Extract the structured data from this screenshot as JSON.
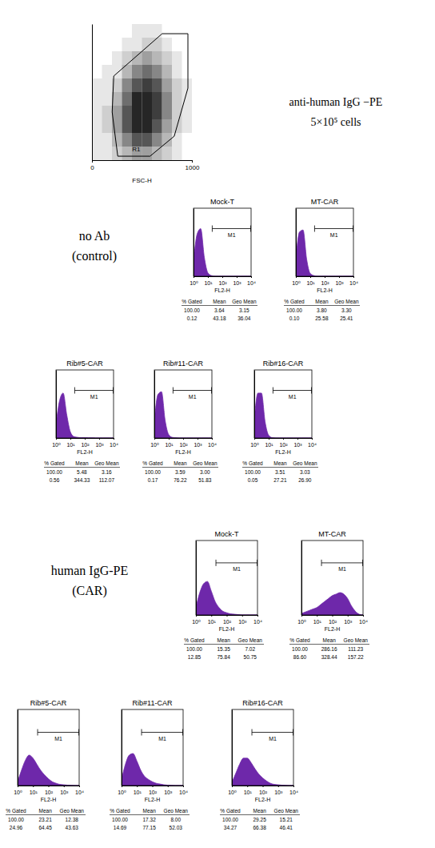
{
  "chart_data": [
    {
      "type": "density",
      "xlabel": "FSC-H",
      "xlim": [
        0,
        1000
      ],
      "ylim": [
        0,
        1000
      ],
      "xticks": [
        0,
        1000
      ],
      "tick_labels": "x",
      "color": "#000000",
      "density_xbins": [
        0,
        100,
        200,
        300,
        400,
        500,
        600,
        700,
        800,
        900,
        1000
      ],
      "density_ybins": [
        0,
        100,
        200,
        300,
        400,
        500,
        600,
        700,
        800,
        900,
        1000
      ],
      "density": [
        [
          1,
          1,
          2,
          3,
          4,
          4,
          3,
          2,
          1,
          0
        ],
        [
          1,
          1,
          3,
          5,
          7,
          7,
          5,
          3,
          1,
          0
        ],
        [
          1,
          2,
          4,
          7,
          9,
          9,
          7,
          4,
          2,
          1
        ],
        [
          1,
          2,
          4,
          7,
          9,
          9,
          8,
          5,
          2,
          1
        ],
        [
          1,
          1,
          3,
          6,
          9,
          9,
          8,
          5,
          2,
          1
        ],
        [
          1,
          1,
          2,
          5,
          7,
          8,
          7,
          4,
          2,
          1
        ],
        [
          0,
          1,
          1,
          3,
          5,
          6,
          5,
          3,
          1,
          0
        ],
        [
          0,
          0,
          1,
          2,
          3,
          4,
          3,
          2,
          1,
          0
        ],
        [
          0,
          0,
          0,
          1,
          1,
          2,
          2,
          1,
          0,
          0
        ],
        [
          0,
          0,
          0,
          0,
          1,
          1,
          1,
          0,
          0,
          0
        ]
      ],
      "gate": {
        "label": "R1",
        "polygon": [
          [
            218,
            618
          ],
          [
            702,
            929
          ],
          [
            960,
            929
          ],
          [
            960,
            529
          ],
          [
            823,
            176
          ],
          [
            581,
            29
          ],
          [
            258,
            29
          ],
          [
            202,
            353
          ]
        ]
      },
      "annotations": [
        "anti-human IgG −PE",
        "5×10⁵ cells"
      ]
    },
    {
      "type": "area",
      "title": "Mock-T",
      "xlabel": "FL2-H",
      "log": "x",
      "xlim": [
        1,
        10000
      ],
      "xticks": [
        {
          "value": 1,
          "label": "10⁰"
        },
        {
          "value": 10,
          "label": "10¹"
        },
        {
          "value": 100,
          "label": "10²"
        },
        {
          "value": 1000,
          "label": "10³"
        },
        {
          "value": 10000,
          "label": "10⁴"
        }
      ],
      "ylim": [
        0,
        100
      ],
      "tick_labels": "x",
      "color": "#6e28aa",
      "x": [
        1,
        1.78,
        3.16,
        5.62,
        10,
        17.8,
        31.6,
        56.2,
        100,
        178,
        316,
        562,
        1000,
        1778,
        3162,
        5623,
        10000
      ],
      "values": [
        22,
        62,
        70,
        28,
        5,
        1,
        0,
        0,
        0,
        0,
        0,
        0,
        0,
        0,
        0,
        0,
        0
      ],
      "gate": {
        "label": "M1",
        "range": [
          20,
          10000
        ]
      },
      "stats": {
        "columns": [
          "% Gated",
          "Mean",
          "Geo Mean"
        ],
        "rows": [
          [
            "100.00",
            "3.64",
            "3.15"
          ],
          [
            "0.12",
            "43.18",
            "36.04"
          ]
        ]
      }
    },
    {
      "type": "area",
      "title": "MT-CAR",
      "xlabel": "FL2-H",
      "log": "x",
      "xlim": [
        1,
        10000
      ],
      "xticks": [
        {
          "value": 1,
          "label": "10⁰"
        },
        {
          "value": 10,
          "label": "10¹"
        },
        {
          "value": 100,
          "label": "10²"
        },
        {
          "value": 1000,
          "label": "10³"
        },
        {
          "value": 10000,
          "label": "10⁴"
        }
      ],
      "ylim": [
        0,
        100
      ],
      "tick_labels": "x",
      "color": "#6e28aa",
      "x": [
        1,
        1.78,
        3.16,
        5.62,
        10,
        17.8,
        31.6,
        56.2,
        100,
        178,
        316,
        562,
        1000,
        1778,
        3162,
        5623,
        10000
      ],
      "values": [
        25,
        65,
        68,
        25,
        4,
        1,
        0,
        0,
        0,
        0,
        0,
        0,
        0,
        0,
        0,
        0,
        0
      ],
      "gate": {
        "label": "M1",
        "range": [
          20,
          10000
        ]
      },
      "stats": {
        "columns": [
          "% Gated",
          "Mean",
          "Geo Mean"
        ],
        "rows": [
          [
            "100.00",
            "3.80",
            "3.30"
          ],
          [
            "0.10",
            "25.58",
            "25.41"
          ]
        ]
      }
    },
    {
      "type": "area",
      "title": "Rib#5-CAR",
      "xlabel": "FL2-H",
      "log": "x",
      "xlim": [
        1,
        10000
      ],
      "xticks": [
        {
          "value": 1,
          "label": "10⁰"
        },
        {
          "value": 10,
          "label": "10¹"
        },
        {
          "value": 100,
          "label": "10²"
        },
        {
          "value": 1000,
          "label": "10³"
        },
        {
          "value": 10000,
          "label": "10⁴"
        }
      ],
      "ylim": [
        0,
        100
      ],
      "tick_labels": "x",
      "color": "#6e28aa",
      "x": [
        1,
        1.78,
        3.16,
        5.62,
        10,
        17.8,
        31.6,
        56.2,
        100,
        178,
        316,
        562,
        1000,
        1778,
        3162,
        5623,
        10000
      ],
      "values": [
        20,
        55,
        66,
        34,
        9,
        2,
        1,
        0.5,
        0.5,
        0.3,
        0.2,
        0,
        0,
        0,
        0,
        0,
        0
      ],
      "gate": {
        "label": "M1",
        "range": [
          20,
          10000
        ]
      },
      "stats": {
        "columns": [
          "% Gated",
          "Mean",
          "Geo Mean"
        ],
        "rows": [
          [
            "100.00",
            "5.48",
            "3.16"
          ],
          [
            "0.56",
            "344.33",
            "112.07"
          ]
        ]
      }
    },
    {
      "type": "area",
      "title": "Rib#11-CAR",
      "xlabel": "FL2-H",
      "log": "x",
      "xlim": [
        1,
        10000
      ],
      "xticks": [
        {
          "value": 1,
          "label": "10⁰"
        },
        {
          "value": 10,
          "label": "10¹"
        },
        {
          "value": 100,
          "label": "10²"
        },
        {
          "value": 1000,
          "label": "10³"
        },
        {
          "value": 10000,
          "label": "10⁴"
        }
      ],
      "ylim": [
        0,
        100
      ],
      "tick_labels": "x",
      "color": "#6e28aa",
      "x": [
        1,
        1.78,
        3.16,
        5.62,
        10,
        17.8,
        31.6,
        56.2,
        100,
        178,
        316,
        562,
        1000,
        1778,
        3162,
        5623,
        10000
      ],
      "values": [
        24,
        64,
        68,
        26,
        5,
        1,
        0.3,
        0,
        0,
        0,
        0,
        0,
        0,
        0,
        0,
        0,
        0
      ],
      "gate": {
        "label": "M1",
        "range": [
          20,
          10000
        ]
      },
      "stats": {
        "columns": [
          "% Gated",
          "Mean",
          "Geo Mean"
        ],
        "rows": [
          [
            "100.00",
            "3.59",
            "3.00"
          ],
          [
            "0.17",
            "76.22",
            "51.83"
          ]
        ]
      }
    },
    {
      "type": "area",
      "title": "Rib#16-CAR",
      "xlabel": "FL2-H",
      "log": "x",
      "xlim": [
        1,
        10000
      ],
      "xticks": [
        {
          "value": 1,
          "label": "10⁰"
        },
        {
          "value": 10,
          "label": "10¹"
        },
        {
          "value": 100,
          "label": "10²"
        },
        {
          "value": 1000,
          "label": "10³"
        },
        {
          "value": 10000,
          "label": "10⁴"
        }
      ],
      "ylim": [
        0,
        100
      ],
      "tick_labels": "x",
      "color": "#6e28aa",
      "x": [
        1,
        1.78,
        3.16,
        5.62,
        10,
        17.8,
        31.6,
        56.2,
        100,
        178,
        316,
        562,
        1000,
        1778,
        3162,
        5623,
        10000
      ],
      "values": [
        26,
        66,
        66,
        24,
        4,
        0.5,
        0,
        0,
        0,
        0,
        0,
        0,
        0,
        0,
        0,
        0,
        0
      ],
      "gate": {
        "label": "M1",
        "range": [
          20,
          10000
        ]
      },
      "stats": {
        "columns": [
          "% Gated",
          "Mean",
          "Geo Mean"
        ],
        "rows": [
          [
            "100.00",
            "3.51",
            "3.03"
          ],
          [
            "0.05",
            "27.21",
            "26.90"
          ]
        ]
      }
    },
    {
      "type": "area",
      "title": "Mock-T",
      "xlabel": "FL2-H",
      "log": "x",
      "xlim": [
        1,
        10000
      ],
      "xticks": [
        {
          "value": 1,
          "label": "10⁰"
        },
        {
          "value": 10,
          "label": "10¹"
        },
        {
          "value": 100,
          "label": "10²"
        },
        {
          "value": 1000,
          "label": "10³"
        },
        {
          "value": 10000,
          "label": "10⁴"
        }
      ],
      "ylim": [
        0,
        100
      ],
      "tick_labels": "x",
      "color": "#6e28aa",
      "x": [
        1,
        1.78,
        3.16,
        5.62,
        10,
        17.8,
        31.6,
        56.2,
        100,
        178,
        316,
        562,
        1000,
        1778,
        3162,
        5623,
        10000
      ],
      "values": [
        10,
        30,
        42,
        45,
        32,
        18,
        10,
        5,
        3,
        1.5,
        1,
        0.5,
        0,
        0,
        0,
        0,
        0
      ],
      "gate": {
        "label": "M1",
        "range": [
          20,
          10000
        ]
      },
      "stats": {
        "columns": [
          "% Gated",
          "Mean",
          "Geo Mean"
        ],
        "rows": [
          [
            "100.00",
            "15.35",
            "7.02"
          ],
          [
            "12.85",
            "75.84",
            "50.75"
          ]
        ]
      }
    },
    {
      "type": "area",
      "title": "MT-CAR",
      "xlabel": "FL2-H",
      "log": "x",
      "xlim": [
        1,
        10000
      ],
      "xticks": [
        {
          "value": 1,
          "label": "10⁰"
        },
        {
          "value": 10,
          "label": "10¹"
        },
        {
          "value": 100,
          "label": "10²"
        },
        {
          "value": 1000,
          "label": "10³"
        },
        {
          "value": 10000,
          "label": "10⁴"
        }
      ],
      "ylim": [
        0,
        100
      ],
      "tick_labels": "x",
      "color": "#6e28aa",
      "x": [
        1,
        1.78,
        3.16,
        5.62,
        10,
        17.8,
        31.6,
        56.2,
        100,
        178,
        316,
        562,
        1000,
        1778,
        3162,
        5623,
        10000
      ],
      "values": [
        2,
        4,
        6,
        8,
        10,
        14,
        18,
        22,
        26,
        28,
        30,
        28,
        22,
        12,
        5,
        1,
        0
      ],
      "gate": {
        "label": "M1",
        "range": [
          20,
          10000
        ]
      },
      "stats": {
        "columns": [
          "% Gated",
          "Mean",
          "Geo Mean"
        ],
        "rows": [
          [
            "100.00",
            "286.16",
            "111.23"
          ],
          [
            "86.60",
            "328.44",
            "157.22"
          ]
        ]
      }
    },
    {
      "type": "area",
      "title": "Rib#5-CAR",
      "xlabel": "FL2-H",
      "log": "x",
      "xlim": [
        1,
        10000
      ],
      "xticks": [
        {
          "value": 1,
          "label": "10⁰"
        },
        {
          "value": 10,
          "label": "10¹"
        },
        {
          "value": 100,
          "label": "10²"
        },
        {
          "value": 1000,
          "label": "10³"
        },
        {
          "value": 10000,
          "label": "10⁴"
        }
      ],
      "ylim": [
        0,
        100
      ],
      "tick_labels": "x",
      "color": "#6e28aa",
      "x": [
        1,
        1.78,
        3.16,
        5.62,
        10,
        17.8,
        31.6,
        56.2,
        100,
        178,
        316,
        562,
        1000,
        1778,
        3162,
        5623,
        10000
      ],
      "values": [
        5,
        20,
        33,
        40,
        36,
        28,
        20,
        14,
        9,
        5,
        3,
        1.5,
        1,
        0.5,
        0.2,
        0,
        0
      ],
      "gate": {
        "label": "M1",
        "range": [
          20,
          10000
        ]
      },
      "stats": {
        "columns": [
          "% Gated",
          "Mean",
          "Geo Mean"
        ],
        "rows": [
          [
            "100.00",
            "23.21",
            "12.38"
          ],
          [
            "24.96",
            "64.45",
            "43.63"
          ]
        ]
      }
    },
    {
      "type": "area",
      "title": "Rib#11-CAR",
      "xlabel": "FL2-H",
      "log": "x",
      "xlim": [
        1,
        10000
      ],
      "xticks": [
        {
          "value": 1,
          "label": "10⁰"
        },
        {
          "value": 10,
          "label": "10¹"
        },
        {
          "value": 100,
          "label": "10²"
        },
        {
          "value": 1000,
          "label": "10³"
        },
        {
          "value": 10000,
          "label": "10⁴"
        }
      ],
      "ylim": [
        0,
        100
      ],
      "tick_labels": "x",
      "color": "#6e28aa",
      "x": [
        1,
        1.78,
        3.16,
        5.62,
        10,
        17.8,
        31.6,
        56.2,
        100,
        178,
        316,
        562,
        1000,
        1778,
        3162,
        5623,
        10000
      ],
      "values": [
        8,
        28,
        40,
        42,
        32,
        20,
        12,
        8,
        5,
        3,
        2,
        1,
        0.5,
        0.2,
        0,
        0,
        0
      ],
      "gate": {
        "label": "M1",
        "range": [
          20,
          10000
        ]
      },
      "stats": {
        "columns": [
          "% Gated",
          "Mean",
          "Geo Mean"
        ],
        "rows": [
          [
            "100.00",
            "17.32",
            "8.00"
          ],
          [
            "14.69",
            "77.15",
            "52.03"
          ]
        ]
      }
    },
    {
      "type": "area",
      "title": "Rib#16-CAR",
      "xlabel": "FL2-H",
      "log": "x",
      "xlim": [
        1,
        10000
      ],
      "xticks": [
        {
          "value": 1,
          "label": "10⁰"
        },
        {
          "value": 10,
          "label": "10¹"
        },
        {
          "value": 100,
          "label": "10²"
        },
        {
          "value": 1000,
          "label": "10³"
        },
        {
          "value": 10000,
          "label": "10⁴"
        }
      ],
      "ylim": [
        0,
        100
      ],
      "tick_labels": "x",
      "color": "#6e28aa",
      "x": [
        1,
        1.78,
        3.16,
        5.62,
        10,
        17.8,
        31.6,
        56.2,
        100,
        178,
        316,
        562,
        1000,
        1778,
        3162,
        5623,
        10000
      ],
      "values": [
        4,
        16,
        28,
        36,
        36,
        30,
        22,
        15,
        10,
        6,
        3,
        1.5,
        1,
        0.5,
        0.2,
        0,
        0
      ],
      "gate": {
        "label": "M1",
        "range": [
          20,
          10000
        ]
      },
      "stats": {
        "columns": [
          "% Gated",
          "Mean",
          "Geo Mean"
        ],
        "rows": [
          [
            "100.00",
            "29.25",
            "15.21"
          ],
          [
            "34.27",
            "66.38",
            "46.41"
          ]
        ]
      }
    }
  ],
  "sections": [
    {
      "label": [
        "no Ab",
        "(control)"
      ]
    },
    {
      "label": [
        "human IgG-PE",
        "(CAR)"
      ]
    }
  ]
}
